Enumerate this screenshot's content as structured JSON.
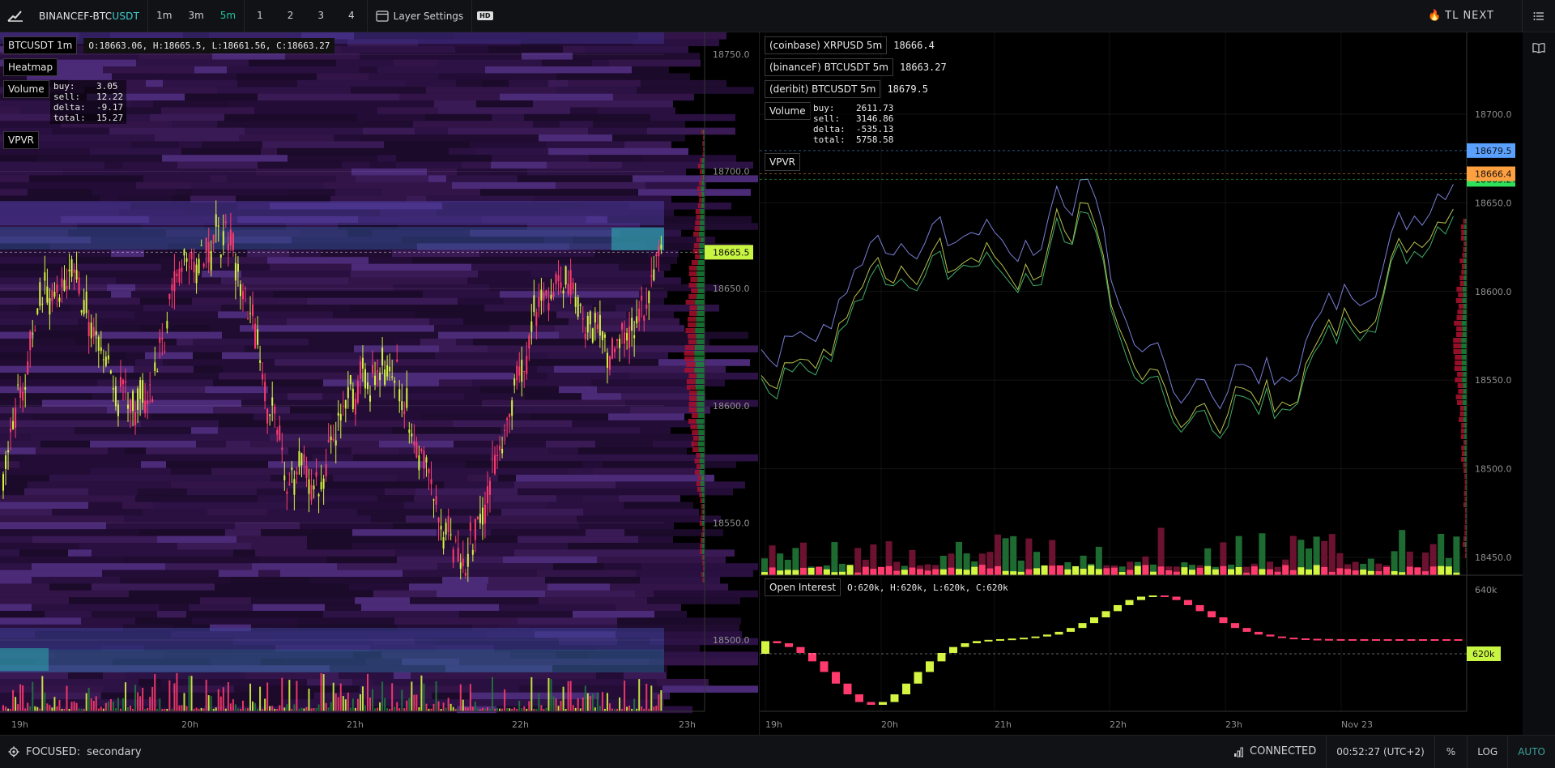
{
  "toolbar": {
    "symbol_prefix": "BINANCEF-BTC",
    "symbol_suffix": "USDT",
    "timeframes": [
      "1m",
      "3m",
      "5m"
    ],
    "active_timeframe": "5m",
    "layouts": [
      "1",
      "2",
      "3",
      "4"
    ],
    "layer_settings_label": "Layer Settings",
    "hd_label": "HD",
    "brand_label": "TL NEXT"
  },
  "left_chart": {
    "symbol_label": "BTCUSDT 1m",
    "ohlc": "O:18663.06, H:18665.5, L:18661.56, C:18663.27",
    "heatmap_label": "Heatmap",
    "volume_label": "Volume",
    "volume_stats": "buy:    3.05\nsell:   12.22\ndelta:  -9.17\ntotal:  15.27",
    "vpvr_label": "VPVR",
    "price_ticks": [
      "18750.0",
      "18700.0",
      "18650.0",
      "18600.0",
      "18550.0",
      "18500.0"
    ],
    "price_tick_values": [
      18750,
      18700,
      18650,
      18600,
      18550,
      18500
    ],
    "current_price": "18665.5",
    "current_price_value": 18665.5,
    "time_ticks": [
      "19h",
      "20h",
      "21h",
      "22h",
      "23h"
    ],
    "colors": {
      "up": "#d4f542",
      "down": "#ff3b6e",
      "price_tag": "#c8f542"
    }
  },
  "right_chart": {
    "series_legend": [
      {
        "label": "(coinbase) XRPUSD 5m",
        "value": "18666.4"
      },
      {
        "label": "(binanceF) BTCUSDT 5m",
        "value": "18663.27"
      },
      {
        "label": "(deribit) BTCUSDT 5m",
        "value": "18679.5"
      }
    ],
    "volume_label": "Volume",
    "volume_stats": "buy:    2611.73\nsell:   3146.86\ndelta:  -535.13\ntotal:  5758.58",
    "vpvr_label": "VPVR",
    "price_ticks": [
      "18700.0",
      "18650.0",
      "18600.0",
      "18550.0",
      "18500.0",
      "18450.0"
    ],
    "price_tick_values": [
      18700,
      18650,
      18600,
      18550,
      18500,
      18450
    ],
    "price_tags": [
      {
        "value": "18679.5",
        "color": "#5aa0ff"
      },
      {
        "value": "18666.4",
        "color": "#ffa040"
      },
      {
        "value": "18663.27",
        "color": "#2ee05a"
      }
    ],
    "time_ticks": [
      "19h",
      "20h",
      "21h",
      "22h",
      "23h",
      "Nov 23"
    ],
    "open_interest": {
      "label": "Open Interest",
      "ohlc": "O:620k, H:620k, L:620k, C:620k",
      "ticks": [
        "640k"
      ],
      "current": "620k"
    }
  },
  "status": {
    "focused_label": "FOCUSED:",
    "focused_value": "secondary",
    "connection": "CONNECTED",
    "clock": "00:52:27 (UTC+2)",
    "percent_label": "%",
    "log_label": "LOG",
    "auto_label": "AUTO"
  }
}
